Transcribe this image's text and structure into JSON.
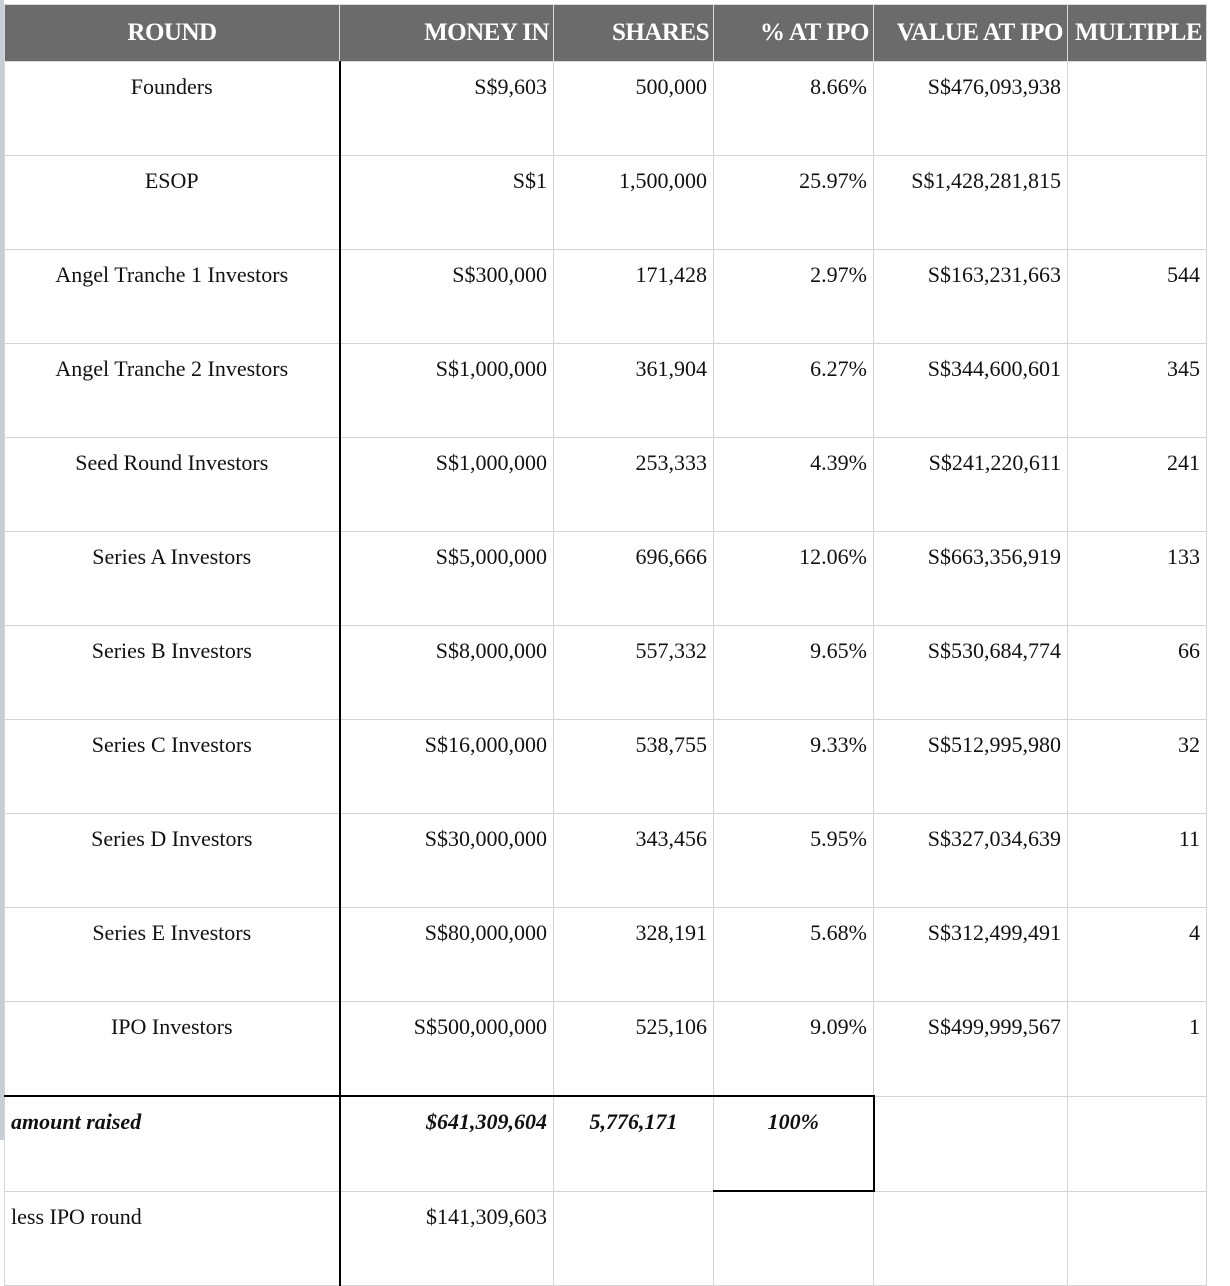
{
  "headers": {
    "round": "ROUND",
    "money_in": "MONEY IN",
    "shares": "SHARES",
    "pct_at_ipo": "% AT IPO",
    "value_at_ipo": "VALUE AT IPO",
    "multiple": "MULTIPLE"
  },
  "rows": [
    {
      "round": "Founders",
      "money_in": "S$9,603",
      "shares": "500,000",
      "pct": "8.66%",
      "value": "S$476,093,938",
      "multiple": ""
    },
    {
      "round": "ESOP",
      "money_in": "S$1",
      "shares": "1,500,000",
      "pct": "25.97%",
      "value": "S$1,428,281,815",
      "multiple": ""
    },
    {
      "round": "Angel Tranche 1 Investors",
      "money_in": "S$300,000",
      "shares": "171,428",
      "pct": "2.97%",
      "value": "S$163,231,663",
      "multiple": "544"
    },
    {
      "round": "Angel Tranche 2 Investors",
      "money_in": "S$1,000,000",
      "shares": "361,904",
      "pct": "6.27%",
      "value": "S$344,600,601",
      "multiple": "345"
    },
    {
      "round": "Seed Round Investors",
      "money_in": "S$1,000,000",
      "shares": "253,333",
      "pct": "4.39%",
      "value": "S$241,220,611",
      "multiple": "241"
    },
    {
      "round": "Series A Investors",
      "money_in": "S$5,000,000",
      "shares": "696,666",
      "pct": "12.06%",
      "value": "S$663,356,919",
      "multiple": "133"
    },
    {
      "round": "Series B Investors",
      "money_in": "S$8,000,000",
      "shares": "557,332",
      "pct": "9.65%",
      "value": "S$530,684,774",
      "multiple": "66"
    },
    {
      "round": "Series C Investors",
      "money_in": "S$16,000,000",
      "shares": "538,755",
      "pct": "9.33%",
      "value": "S$512,995,980",
      "multiple": "32"
    },
    {
      "round": "Series D Investors",
      "money_in": "S$30,000,000",
      "shares": "343,456",
      "pct": "5.95%",
      "value": "S$327,034,639",
      "multiple": "11"
    },
    {
      "round": "Series E Investors",
      "money_in": "S$80,000,000",
      "shares": "328,191",
      "pct": "5.68%",
      "value": "S$312,499,491",
      "multiple": "4"
    },
    {
      "round": "IPO Investors",
      "money_in": "S$500,000,000",
      "shares": "525,106",
      "pct": "9.09%",
      "value": "S$499,999,567",
      "multiple": "1"
    }
  ],
  "total": {
    "label": "amount raised",
    "money_in": "$641,309,604",
    "shares": "5,776,171",
    "pct": "100%"
  },
  "less_ipo": {
    "label": "less IPO round",
    "money_in": "$141,309,603"
  }
}
